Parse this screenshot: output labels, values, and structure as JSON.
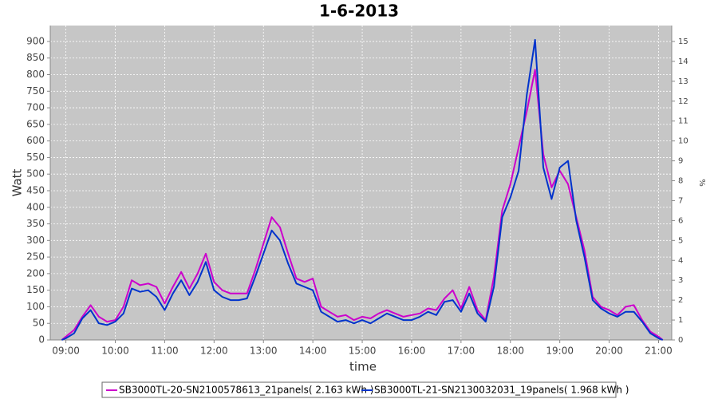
{
  "chart_data": {
    "type": "line",
    "title": "1-6-2013",
    "xlabel": "time",
    "ylabel": "Watt",
    "y2label": "%",
    "x": [
      "08:55",
      "09:00",
      "09:10",
      "09:20",
      "09:30",
      "09:40",
      "09:50",
      "10:00",
      "10:10",
      "10:20",
      "10:30",
      "10:40",
      "10:50",
      "11:00",
      "11:10",
      "11:20",
      "11:30",
      "11:40",
      "11:50",
      "12:00",
      "12:10",
      "12:20",
      "12:30",
      "12:40",
      "12:50",
      "13:00",
      "13:10",
      "13:20",
      "13:30",
      "13:40",
      "13:50",
      "14:00",
      "14:10",
      "14:20",
      "14:30",
      "14:40",
      "14:50",
      "15:00",
      "15:10",
      "15:20",
      "15:30",
      "15:40",
      "15:50",
      "16:00",
      "16:10",
      "16:20",
      "16:30",
      "16:40",
      "16:50",
      "17:00",
      "17:10",
      "17:20",
      "17:30",
      "17:40",
      "17:50",
      "18:00",
      "18:10",
      "18:20",
      "18:30",
      "18:40",
      "18:50",
      "19:00",
      "19:10",
      "19:20",
      "19:30",
      "19:40",
      "19:50",
      "20:00",
      "20:10",
      "20:20",
      "20:30",
      "20:40",
      "20:50",
      "21:00",
      "21:05"
    ],
    "series": [
      {
        "name": "SB3000TL-20-SN2100578613_21panels( 2.163 kWh )",
        "color": "#cc00cc",
        "values": [
          0,
          10,
          30,
          70,
          105,
          70,
          55,
          60,
          100,
          180,
          165,
          170,
          160,
          110,
          160,
          205,
          155,
          200,
          260,
          175,
          150,
          140,
          140,
          140,
          210,
          290,
          370,
          340,
          260,
          185,
          175,
          185,
          100,
          85,
          70,
          75,
          60,
          70,
          65,
          80,
          90,
          80,
          70,
          75,
          80,
          95,
          90,
          125,
          150,
          95,
          160,
          90,
          60,
          190,
          390,
          470,
          580,
          690,
          815,
          560,
          460,
          510,
          470,
          370,
          270,
          130,
          100,
          90,
          75,
          100,
          105,
          60,
          25,
          10,
          0
        ]
      },
      {
        "name": "SB3000TL-21-SN2130032031_19panels( 1.968 kWh )",
        "color": "#0033cc",
        "values": [
          0,
          5,
          20,
          65,
          90,
          50,
          45,
          55,
          80,
          155,
          145,
          150,
          130,
          90,
          140,
          180,
          135,
          175,
          235,
          150,
          130,
          120,
          120,
          125,
          190,
          260,
          330,
          300,
          230,
          170,
          160,
          150,
          85,
          70,
          55,
          60,
          50,
          60,
          50,
          65,
          80,
          70,
          60,
          60,
          70,
          85,
          75,
          115,
          120,
          85,
          140,
          80,
          55,
          160,
          370,
          430,
          510,
          740,
          905,
          520,
          425,
          520,
          540,
          360,
          250,
          120,
          95,
          80,
          70,
          85,
          85,
          55,
          20,
          5,
          0
        ]
      }
    ],
    "xlim": [
      "08:41",
      "21:16"
    ],
    "xticks": [
      "09:00",
      "10:00",
      "11:00",
      "12:00",
      "13:00",
      "14:00",
      "15:00",
      "16:00",
      "17:00",
      "18:00",
      "19:00",
      "20:00",
      "21:00"
    ],
    "ylim": [
      0,
      948
    ],
    "yticks": [
      0,
      50,
      100,
      150,
      200,
      250,
      300,
      350,
      400,
      450,
      500,
      550,
      600,
      650,
      700,
      750,
      800,
      850,
      900
    ],
    "y2lim": [
      0,
      15.8
    ],
    "y2ticks": [
      0,
      1,
      2,
      3,
      4,
      5,
      6,
      7,
      8,
      9,
      10,
      11,
      12,
      13,
      14,
      15
    ],
    "grid": true,
    "legend": "bottom"
  }
}
